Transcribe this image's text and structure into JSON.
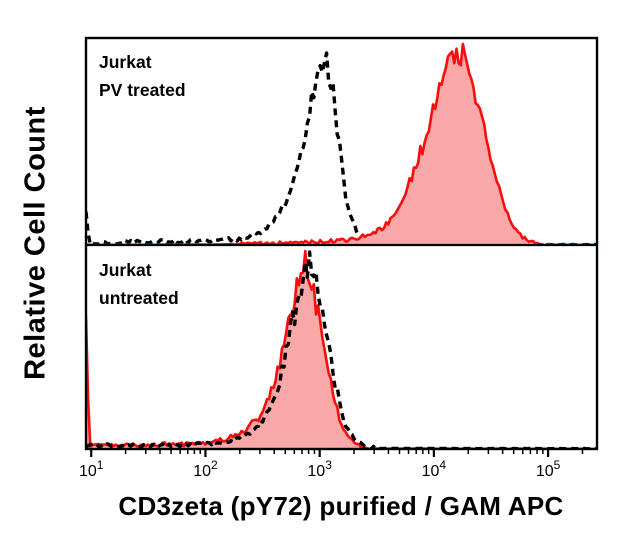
{
  "colors": {
    "red_stroke": "#f80d0d",
    "red_fill": "#f9a8a8",
    "dashed_stroke": "#000000",
    "axis": "#000000",
    "background": "#ffffff"
  },
  "chart_data": {
    "type": "area",
    "description": "Flow cytometry histogram overlay, two stacked panels sharing a log10 x-axis. Red filled curve = stained sample, black dashed curve = control. y values are relative cell counts normalized 0-1 per panel.",
    "x_axis": {
      "scale": "log10",
      "min": 9,
      "max": 268000,
      "major_ticks": [
        10,
        100,
        1000,
        10000,
        100000
      ],
      "tick_base": "10",
      "tick_exponents": [
        "1",
        "2",
        "3",
        "4",
        "5"
      ],
      "label": "CD3zeta (pY72) purified / GAM APC"
    },
    "y_axis": {
      "label": "Relative Cell Count",
      "range": [
        0,
        1
      ],
      "ticks": []
    },
    "panels": [
      {
        "id": "pv-treated",
        "annotation_lines": [
          "Jurkat",
          "PV treated"
        ],
        "series": [
          {
            "id": "control-dashed",
            "name": "control (black dashed)",
            "style": "dashed",
            "peak_x": 1100,
            "peak_y": 0.95,
            "points": [
              [
                9,
                0.18
              ],
              [
                9.6,
                0.01
              ],
              [
                20,
                0.015
              ],
              [
                40,
                0.02
              ],
              [
                80,
                0.018
              ],
              [
                130,
                0.025
              ],
              [
                200,
                0.03
              ],
              [
                300,
                0.06
              ],
              [
                400,
                0.12
              ],
              [
                500,
                0.2
              ],
              [
                630,
                0.36
              ],
              [
                800,
                0.62
              ],
              [
                950,
                0.85
              ],
              [
                1100,
                0.95
              ],
              [
                1250,
                0.85
              ],
              [
                1450,
                0.55
              ],
              [
                1700,
                0.22
              ],
              [
                2100,
                0.06
              ],
              [
                2600,
                0.012
              ],
              [
                3200,
                0.003
              ],
              [
                6000,
                0.002
              ],
              [
                268000,
                0.001
              ]
            ]
          },
          {
            "id": "stained-red",
            "name": "CD3zeta (pY72) purified / GAM APC (red filled)",
            "style": "red-filled",
            "peak_x": 17500,
            "peak_y": 0.96,
            "points": [
              [
                9,
                0.0
              ],
              [
                140,
                0.002
              ],
              [
                300,
                0.006
              ],
              [
                700,
                0.012
              ],
              [
                1000,
                0.018
              ],
              [
                1600,
                0.022
              ],
              [
                2200,
                0.035
              ],
              [
                3000,
                0.06
              ],
              [
                4000,
                0.11
              ],
              [
                5000,
                0.19
              ],
              [
                6500,
                0.34
              ],
              [
                8000,
                0.5
              ],
              [
                10000,
                0.68
              ],
              [
                13000,
                0.87
              ],
              [
                15500,
                0.93
              ],
              [
                17500,
                0.96
              ],
              [
                19000,
                0.9
              ],
              [
                22000,
                0.82
              ],
              [
                26000,
                0.66
              ],
              [
                30000,
                0.48
              ],
              [
                36000,
                0.3
              ],
              [
                44000,
                0.15
              ],
              [
                54000,
                0.06
              ],
              [
                68000,
                0.02
              ],
              [
                85000,
                0.006
              ],
              [
                110000,
                0.001
              ],
              [
                268000,
                0.0
              ]
            ]
          }
        ]
      },
      {
        "id": "untreated",
        "annotation_lines": [
          "Jurkat",
          "untreated"
        ],
        "series": [
          {
            "id": "stained-red",
            "name": "CD3zeta (pY72) purified / GAM APC (red filled)",
            "style": "red-filled",
            "peak_x": 730,
            "peak_y": 0.97,
            "points": [
              [
                9,
                0.68
              ],
              [
                9.6,
                0.02
              ],
              [
                15,
                0.015
              ],
              [
                30,
                0.02
              ],
              [
                60,
                0.025
              ],
              [
                100,
                0.03
              ],
              [
                150,
                0.05
              ],
              [
                220,
                0.09
              ],
              [
                300,
                0.17
              ],
              [
                380,
                0.3
              ],
              [
                460,
                0.46
              ],
              [
                550,
                0.66
              ],
              [
                640,
                0.85
              ],
              [
                730,
                0.97
              ],
              [
                820,
                0.88
              ],
              [
                950,
                0.7
              ],
              [
                1100,
                0.5
              ],
              [
                1300,
                0.28
              ],
              [
                1600,
                0.1
              ],
              [
                2000,
                0.03
              ],
              [
                2400,
                0.008
              ],
              [
                3000,
                0.001
              ],
              [
                268000,
                0.0
              ]
            ]
          },
          {
            "id": "control-dashed",
            "name": "control (black dashed)",
            "style": "dashed",
            "peak_x": 880,
            "peak_y": 0.95,
            "points": [
              [
                9,
                0.02
              ],
              [
                30,
                0.015
              ],
              [
                80,
                0.02
              ],
              [
                150,
                0.035
              ],
              [
                250,
                0.08
              ],
              [
                350,
                0.18
              ],
              [
                450,
                0.35
              ],
              [
                560,
                0.6
              ],
              [
                680,
                0.82
              ],
              [
                800,
                0.93
              ],
              [
                880,
                0.95
              ],
              [
                1000,
                0.8
              ],
              [
                1150,
                0.6
              ],
              [
                1350,
                0.35
              ],
              [
                1600,
                0.15
              ],
              [
                2000,
                0.05
              ],
              [
                2500,
                0.012
              ],
              [
                3100,
                0.002
              ],
              [
                268000,
                0.001
              ]
            ]
          }
        ]
      }
    ]
  }
}
